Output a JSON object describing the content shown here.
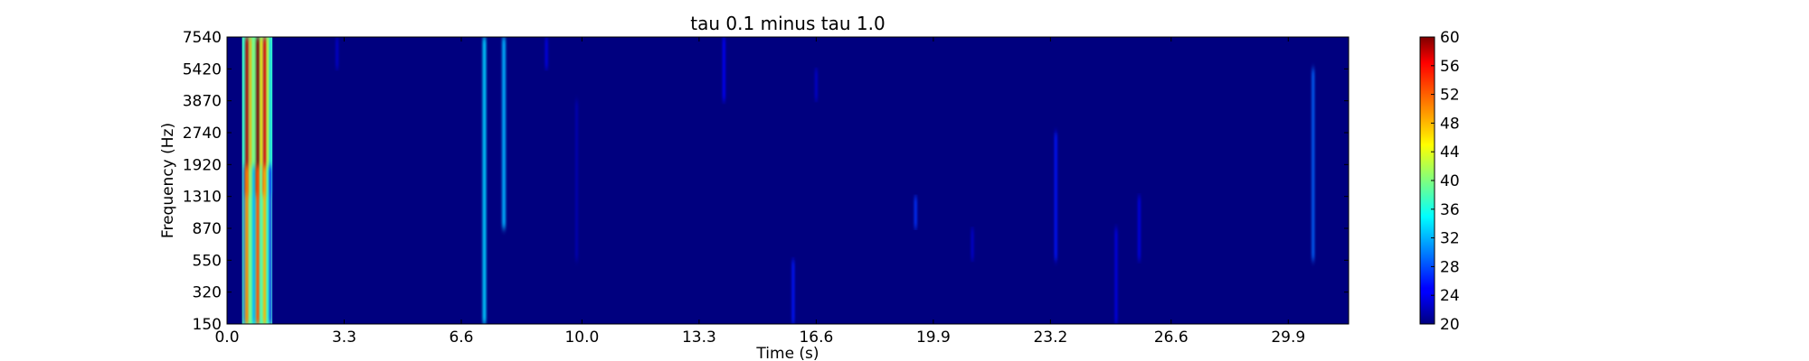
{
  "chart_data": {
    "type": "heatmap",
    "title": "tau 0.1 minus tau 1.0",
    "xlabel": "Time (s)",
    "ylabel": "Frequency (Hz)",
    "x_ticks": [
      "0.0",
      "3.3",
      "6.6",
      "10.0",
      "13.3",
      "16.6",
      "19.9",
      "23.2",
      "26.6",
      "29.9"
    ],
    "x_tick_values": [
      0.0,
      3.3,
      6.6,
      10.0,
      13.3,
      16.6,
      19.9,
      23.2,
      26.6,
      29.9
    ],
    "xlim": [
      0.0,
      31.6
    ],
    "y_ticks": [
      "150",
      "320",
      "550",
      "870",
      "1310",
      "1920",
      "2740",
      "3870",
      "5420",
      "7540"
    ],
    "colormap": "jet",
    "colorbar": {
      "ticks": [
        "20",
        "24",
        "28",
        "32",
        "36",
        "40",
        "44",
        "48",
        "52",
        "56",
        "60"
      ],
      "range": [
        20,
        60
      ]
    },
    "background_value": 20,
    "features": [
      {
        "t_start": 0.45,
        "t_end": 1.25,
        "freq_from": "150",
        "freq_to": "7540",
        "peak_value": 60
      },
      {
        "t": 7.25,
        "freq_from": "150",
        "freq_to": "7540",
        "peak_value": 33
      },
      {
        "t": 7.8,
        "freq_from": "870",
        "freq_to": "7540",
        "peak_value": 32
      },
      {
        "t": 9.0,
        "freq_from": "5420",
        "freq_to": "7540",
        "peak_value": 24
      },
      {
        "t": 3.1,
        "freq_from": "5420",
        "freq_to": "7540",
        "peak_value": 23
      },
      {
        "t": 9.85,
        "freq_from": "550",
        "freq_to": "3870",
        "peak_value": 22
      },
      {
        "t": 14.0,
        "freq_from": "3870",
        "freq_to": "7540",
        "peak_value": 25
      },
      {
        "t": 15.95,
        "freq_from": "150",
        "freq_to": "550",
        "peak_value": 26
      },
      {
        "t": 16.6,
        "freq_from": "3870",
        "freq_to": "5420",
        "peak_value": 23
      },
      {
        "t": 19.4,
        "freq_from": "870",
        "freq_to": "1310",
        "peak_value": 27
      },
      {
        "t": 21.0,
        "freq_from": "550",
        "freq_to": "870",
        "peak_value": 23
      },
      {
        "t": 23.35,
        "freq_from": "550",
        "freq_to": "2740",
        "peak_value": 26
      },
      {
        "t": 25.05,
        "freq_from": "150",
        "freq_to": "870",
        "peak_value": 24
      },
      {
        "t": 25.7,
        "freq_from": "550",
        "freq_to": "1310",
        "peak_value": 24
      },
      {
        "t": 30.6,
        "freq_from": "550",
        "freq_to": "5420",
        "peak_value": 29
      }
    ]
  }
}
